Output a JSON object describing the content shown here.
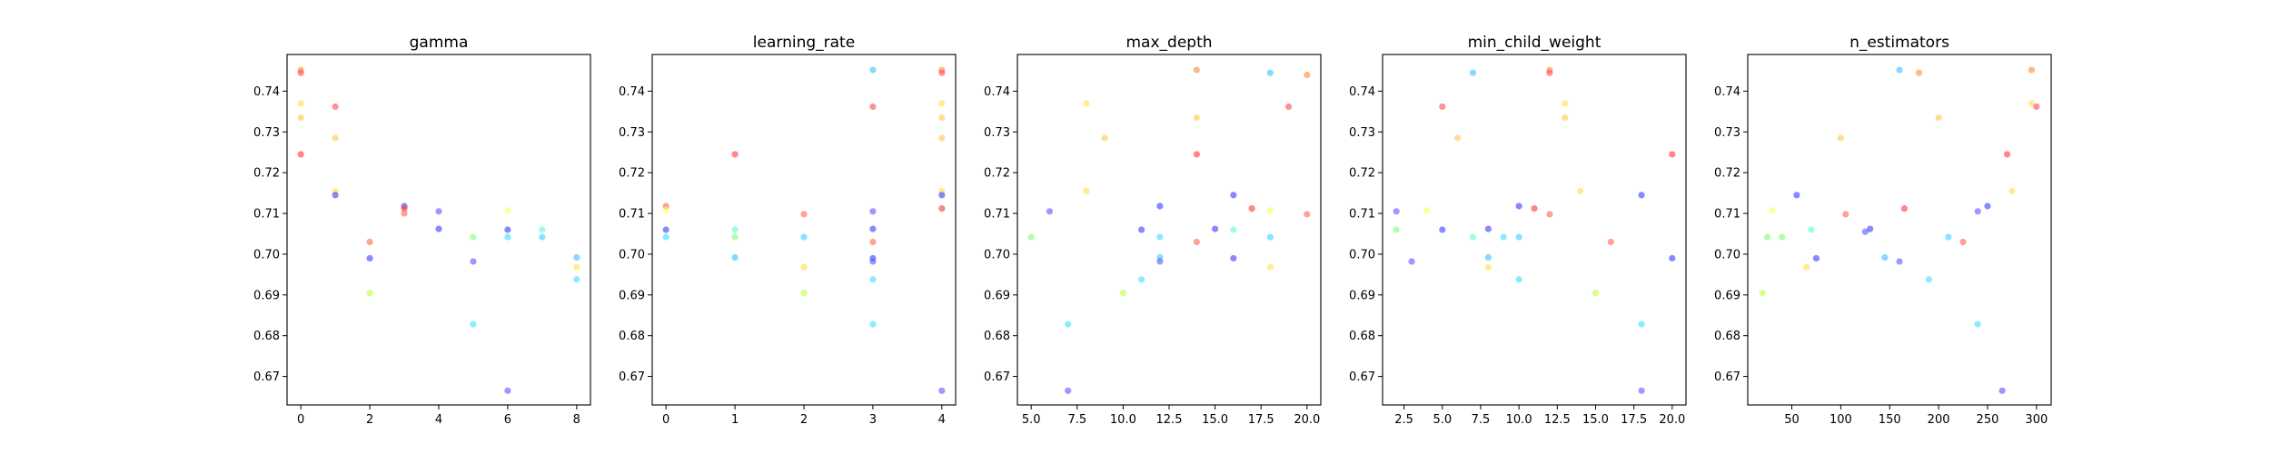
{
  "chart_data": [
    {
      "type": "scatter",
      "title": "gamma",
      "xlim": [
        -0.4,
        8.4
      ],
      "ylim": [
        0.663,
        0.749
      ],
      "xticks": [
        0,
        2,
        4,
        6,
        8
      ],
      "xtick_labels": [
        "0",
        "2",
        "4",
        "6",
        "8"
      ],
      "yticks": [
        0.67,
        0.68,
        0.69,
        0.7,
        0.71,
        0.72,
        0.73,
        0.74
      ],
      "ytick_labels": [
        "0.67",
        "0.68",
        "0.69",
        "0.70",
        "0.71",
        "0.72",
        "0.73",
        "0.74"
      ],
      "points": [
        {
          "x": 0,
          "y": 0.7452,
          "c": "#ff8c3c"
        },
        {
          "x": 0,
          "y": 0.7445,
          "c": "#ff5050"
        },
        {
          "x": 0,
          "y": 0.737,
          "c": "#ffe050"
        },
        {
          "x": 0,
          "y": 0.7335,
          "c": "#ffc850"
        },
        {
          "x": 0,
          "y": 0.7245,
          "c": "#ff3c3c"
        },
        {
          "x": 1,
          "y": 0.7362,
          "c": "#ff5050"
        },
        {
          "x": 1,
          "y": 0.7285,
          "c": "#ffc850"
        },
        {
          "x": 1,
          "y": 0.7155,
          "c": "#ffe050"
        },
        {
          "x": 1,
          "y": 0.7145,
          "c": "#4040ff"
        },
        {
          "x": 2,
          "y": 0.703,
          "c": "#ff6a50"
        },
        {
          "x": 2,
          "y": 0.699,
          "c": "#4040ff"
        },
        {
          "x": 2,
          "y": 0.6905,
          "c": "#c0ff40"
        },
        {
          "x": 3,
          "y": 0.7118,
          "c": "#4040ff"
        },
        {
          "x": 3,
          "y": 0.7112,
          "c": "#ff3c3c"
        },
        {
          "x": 3,
          "y": 0.71,
          "c": "#ff6a50"
        },
        {
          "x": 4,
          "y": 0.7105,
          "c": "#5a5aff"
        },
        {
          "x": 4,
          "y": 0.7062,
          "c": "#4040ff"
        },
        {
          "x": 5,
          "y": 0.7042,
          "c": "#80ff80"
        },
        {
          "x": 5,
          "y": 0.6982,
          "c": "#5a5aff"
        },
        {
          "x": 5,
          "y": 0.6828,
          "c": "#40e0ff"
        },
        {
          "x": 6,
          "y": 0.7108,
          "c": "#ffff60"
        },
        {
          "x": 6,
          "y": 0.706,
          "c": "#4040ff"
        },
        {
          "x": 6,
          "y": 0.7042,
          "c": "#40e0ff"
        },
        {
          "x": 6,
          "y": 0.6665,
          "c": "#5a5aff"
        },
        {
          "x": 7,
          "y": 0.706,
          "c": "#60ffd0"
        },
        {
          "x": 7,
          "y": 0.7042,
          "c": "#40d0ff"
        },
        {
          "x": 8,
          "y": 0.6992,
          "c": "#40c0ff"
        },
        {
          "x": 8,
          "y": 0.6968,
          "c": "#ffe050"
        },
        {
          "x": 8,
          "y": 0.6938,
          "c": "#40e0ff"
        }
      ]
    },
    {
      "type": "scatter",
      "title": "learning_rate",
      "xlim": [
        -0.2,
        4.2
      ],
      "ylim": [
        0.663,
        0.749
      ],
      "xticks": [
        0,
        1,
        2,
        3,
        4
      ],
      "xtick_labels": [
        "0",
        "1",
        "2",
        "3",
        "4"
      ],
      "yticks": [
        0.67,
        0.68,
        0.69,
        0.7,
        0.71,
        0.72,
        0.73,
        0.74
      ],
      "ytick_labels": [
        "0.67",
        "0.68",
        "0.69",
        "0.70",
        "0.71",
        "0.72",
        "0.73",
        "0.74"
      ],
      "points": [
        {
          "x": 0,
          "y": 0.7118,
          "c": "#ff6a50"
        },
        {
          "x": 0,
          "y": 0.7108,
          "c": "#ffff60"
        },
        {
          "x": 0,
          "y": 0.706,
          "c": "#4040ff"
        },
        {
          "x": 0,
          "y": 0.7042,
          "c": "#40e0ff"
        },
        {
          "x": 1,
          "y": 0.7245,
          "c": "#ff3c3c"
        },
        {
          "x": 1,
          "y": 0.706,
          "c": "#60ffd0"
        },
        {
          "x": 1,
          "y": 0.7042,
          "c": "#80ff80"
        },
        {
          "x": 1,
          "y": 0.6992,
          "c": "#40c0ff"
        },
        {
          "x": 2,
          "y": 0.7098,
          "c": "#ff6a50"
        },
        {
          "x": 2,
          "y": 0.7042,
          "c": "#40d0ff"
        },
        {
          "x": 2,
          "y": 0.6968,
          "c": "#ffe050"
        },
        {
          "x": 2,
          "y": 0.6905,
          "c": "#c0ff40"
        },
        {
          "x": 3,
          "y": 0.7452,
          "c": "#40c0ff"
        },
        {
          "x": 3,
          "y": 0.7362,
          "c": "#ff5050"
        },
        {
          "x": 3,
          "y": 0.7105,
          "c": "#5a5aff"
        },
        {
          "x": 3,
          "y": 0.7062,
          "c": "#4040ff"
        },
        {
          "x": 3,
          "y": 0.703,
          "c": "#ff6a50"
        },
        {
          "x": 3,
          "y": 0.699,
          "c": "#4040ff"
        },
        {
          "x": 3,
          "y": 0.6982,
          "c": "#5a5aff"
        },
        {
          "x": 3,
          "y": 0.6938,
          "c": "#40e0ff"
        },
        {
          "x": 3,
          "y": 0.6828,
          "c": "#40e0ff"
        },
        {
          "x": 4,
          "y": 0.7452,
          "c": "#ff8c3c"
        },
        {
          "x": 4,
          "y": 0.7445,
          "c": "#ff5050"
        },
        {
          "x": 4,
          "y": 0.737,
          "c": "#ffe050"
        },
        {
          "x": 4,
          "y": 0.7335,
          "c": "#ffc850"
        },
        {
          "x": 4,
          "y": 0.7285,
          "c": "#ffc850"
        },
        {
          "x": 4,
          "y": 0.7155,
          "c": "#ffe050"
        },
        {
          "x": 4,
          "y": 0.7145,
          "c": "#4040ff"
        },
        {
          "x": 4,
          "y": 0.7112,
          "c": "#ff3c3c"
        },
        {
          "x": 4,
          "y": 0.6665,
          "c": "#5a5aff"
        }
      ]
    },
    {
      "type": "scatter",
      "title": "max_depth",
      "xlim": [
        4.25,
        20.75
      ],
      "ylim": [
        0.663,
        0.749
      ],
      "xticks": [
        5.0,
        7.5,
        10.0,
        12.5,
        15.0,
        17.5,
        20.0
      ],
      "xtick_labels": [
        "5.0",
        "7.5",
        "10.0",
        "12.5",
        "15.0",
        "17.5",
        "20.0"
      ],
      "yticks": [
        0.67,
        0.68,
        0.69,
        0.7,
        0.71,
        0.72,
        0.73,
        0.74
      ],
      "ytick_labels": [
        "0.67",
        "0.68",
        "0.69",
        "0.70",
        "0.71",
        "0.72",
        "0.73",
        "0.74"
      ],
      "points": [
        {
          "x": 5,
          "y": 0.7042,
          "c": "#80ff80"
        },
        {
          "x": 6,
          "y": 0.7105,
          "c": "#5a5aff"
        },
        {
          "x": 7,
          "y": 0.6828,
          "c": "#40e0ff"
        },
        {
          "x": 7,
          "y": 0.6665,
          "c": "#5a5aff"
        },
        {
          "x": 8,
          "y": 0.737,
          "c": "#ffe050"
        },
        {
          "x": 8,
          "y": 0.7155,
          "c": "#ffe050"
        },
        {
          "x": 9,
          "y": 0.7285,
          "c": "#ffc850"
        },
        {
          "x": 10,
          "y": 0.6905,
          "c": "#c0ff40"
        },
        {
          "x": 11,
          "y": 0.706,
          "c": "#4040ff"
        },
        {
          "x": 11,
          "y": 0.6938,
          "c": "#40e0ff"
        },
        {
          "x": 12,
          "y": 0.7118,
          "c": "#4040ff"
        },
        {
          "x": 12,
          "y": 0.7042,
          "c": "#40e0ff"
        },
        {
          "x": 12,
          "y": 0.6992,
          "c": "#40c0ff"
        },
        {
          "x": 12,
          "y": 0.6982,
          "c": "#5a5aff"
        },
        {
          "x": 14,
          "y": 0.7452,
          "c": "#ff8c3c"
        },
        {
          "x": 14,
          "y": 0.7335,
          "c": "#ffc850"
        },
        {
          "x": 14,
          "y": 0.7245,
          "c": "#ff3c3c"
        },
        {
          "x": 14,
          "y": 0.703,
          "c": "#ff6a50"
        },
        {
          "x": 15,
          "y": 0.7062,
          "c": "#4040ff"
        },
        {
          "x": 16,
          "y": 0.7145,
          "c": "#4040ff"
        },
        {
          "x": 16,
          "y": 0.706,
          "c": "#60ffd0"
        },
        {
          "x": 16,
          "y": 0.699,
          "c": "#4040ff"
        },
        {
          "x": 17,
          "y": 0.7112,
          "c": "#ff3c3c"
        },
        {
          "x": 18,
          "y": 0.7445,
          "c": "#40c0ff"
        },
        {
          "x": 18,
          "y": 0.7108,
          "c": "#ffff60"
        },
        {
          "x": 18,
          "y": 0.7042,
          "c": "#40d0ff"
        },
        {
          "x": 18,
          "y": 0.6968,
          "c": "#ffe050"
        },
        {
          "x": 19,
          "y": 0.7362,
          "c": "#ff5050"
        },
        {
          "x": 20,
          "y": 0.744,
          "c": "#ff8c3c"
        },
        {
          "x": 20,
          "y": 0.7098,
          "c": "#ff6a50"
        }
      ]
    },
    {
      "type": "scatter",
      "title": "min_child_weight",
      "xlim": [
        1.1,
        20.9
      ],
      "ylim": [
        0.663,
        0.749
      ],
      "xticks": [
        2.5,
        5.0,
        7.5,
        10.0,
        12.5,
        15.0,
        17.5,
        20.0
      ],
      "xtick_labels": [
        "2.5",
        "5.0",
        "7.5",
        "10.0",
        "12.5",
        "15.0",
        "17.5",
        "20.0"
      ],
      "yticks": [
        0.67,
        0.68,
        0.69,
        0.7,
        0.71,
        0.72,
        0.73,
        0.74
      ],
      "ytick_labels": [
        "0.67",
        "0.68",
        "0.69",
        "0.70",
        "0.71",
        "0.72",
        "0.73",
        "0.74"
      ],
      "points": [
        {
          "x": 2,
          "y": 0.7105,
          "c": "#5a5aff"
        },
        {
          "x": 2,
          "y": 0.706,
          "c": "#80ff80"
        },
        {
          "x": 3,
          "y": 0.6982,
          "c": "#5a5aff"
        },
        {
          "x": 4,
          "y": 0.7108,
          "c": "#ffff60"
        },
        {
          "x": 5,
          "y": 0.7362,
          "c": "#ff5050"
        },
        {
          "x": 5,
          "y": 0.706,
          "c": "#4040ff"
        },
        {
          "x": 6,
          "y": 0.7285,
          "c": "#ffc850"
        },
        {
          "x": 7,
          "y": 0.7445,
          "c": "#40c0ff"
        },
        {
          "x": 7,
          "y": 0.7042,
          "c": "#60ffd0"
        },
        {
          "x": 8,
          "y": 0.7062,
          "c": "#4040ff"
        },
        {
          "x": 8,
          "y": 0.6992,
          "c": "#40c0ff"
        },
        {
          "x": 8,
          "y": 0.6968,
          "c": "#ffe050"
        },
        {
          "x": 9,
          "y": 0.7042,
          "c": "#40e0ff"
        },
        {
          "x": 10,
          "y": 0.7118,
          "c": "#4040ff"
        },
        {
          "x": 10,
          "y": 0.7042,
          "c": "#40d0ff"
        },
        {
          "x": 10,
          "y": 0.6938,
          "c": "#40e0ff"
        },
        {
          "x": 11,
          "y": 0.7112,
          "c": "#ff3c3c"
        },
        {
          "x": 12,
          "y": 0.7452,
          "c": "#ff8c3c"
        },
        {
          "x": 12,
          "y": 0.7445,
          "c": "#ff5050"
        },
        {
          "x": 12,
          "y": 0.7098,
          "c": "#ff6a50"
        },
        {
          "x": 13,
          "y": 0.737,
          "c": "#ffe050"
        },
        {
          "x": 13,
          "y": 0.7335,
          "c": "#ffc850"
        },
        {
          "x": 14,
          "y": 0.7155,
          "c": "#ffe050"
        },
        {
          "x": 15,
          "y": 0.6905,
          "c": "#c0ff40"
        },
        {
          "x": 16,
          "y": 0.703,
          "c": "#ff6a50"
        },
        {
          "x": 18,
          "y": 0.7145,
          "c": "#4040ff"
        },
        {
          "x": 18,
          "y": 0.6828,
          "c": "#40e0ff"
        },
        {
          "x": 18,
          "y": 0.6665,
          "c": "#5a5aff"
        },
        {
          "x": 20,
          "y": 0.7245,
          "c": "#ff3c3c"
        },
        {
          "x": 20,
          "y": 0.699,
          "c": "#4040ff"
        }
      ]
    },
    {
      "type": "scatter",
      "title": "n_estimators",
      "xlim": [
        5,
        315
      ],
      "ylim": [
        0.663,
        0.749
      ],
      "xticks": [
        50,
        100,
        150,
        200,
        250,
        300
      ],
      "xtick_labels": [
        "50",
        "100",
        "150",
        "200",
        "250",
        "300"
      ],
      "yticks": [
        0.67,
        0.68,
        0.69,
        0.7,
        0.71,
        0.72,
        0.73,
        0.74
      ],
      "ytick_labels": [
        "0.67",
        "0.68",
        "0.69",
        "0.70",
        "0.71",
        "0.72",
        "0.73",
        "0.74"
      ],
      "points": [
        {
          "x": 20,
          "y": 0.6905,
          "c": "#c0ff40"
        },
        {
          "x": 25,
          "y": 0.7042,
          "c": "#80ff80"
        },
        {
          "x": 30,
          "y": 0.7108,
          "c": "#ffff60"
        },
        {
          "x": 40,
          "y": 0.7042,
          "c": "#80ff80"
        },
        {
          "x": 55,
          "y": 0.7145,
          "c": "#4040ff"
        },
        {
          "x": 65,
          "y": 0.6968,
          "c": "#ffe050"
        },
        {
          "x": 70,
          "y": 0.706,
          "c": "#60ffd0"
        },
        {
          "x": 75,
          "y": 0.699,
          "c": "#4040ff"
        },
        {
          "x": 100,
          "y": 0.7285,
          "c": "#ffc850"
        },
        {
          "x": 105,
          "y": 0.7098,
          "c": "#ff6a50"
        },
        {
          "x": 125,
          "y": 0.7055,
          "c": "#5a5aff"
        },
        {
          "x": 130,
          "y": 0.7062,
          "c": "#4040ff"
        },
        {
          "x": 145,
          "y": 0.6992,
          "c": "#40c0ff"
        },
        {
          "x": 160,
          "y": 0.7452,
          "c": "#40c0ff"
        },
        {
          "x": 160,
          "y": 0.6982,
          "c": "#5a5aff"
        },
        {
          "x": 165,
          "y": 0.7112,
          "c": "#ff3c3c"
        },
        {
          "x": 180,
          "y": 0.7445,
          "c": "#ff8c3c"
        },
        {
          "x": 190,
          "y": 0.6938,
          "c": "#40e0ff"
        },
        {
          "x": 200,
          "y": 0.7335,
          "c": "#ffc850"
        },
        {
          "x": 210,
          "y": 0.7042,
          "c": "#40d0ff"
        },
        {
          "x": 225,
          "y": 0.703,
          "c": "#ff6a50"
        },
        {
          "x": 240,
          "y": 0.7105,
          "c": "#5a5aff"
        },
        {
          "x": 240,
          "y": 0.6828,
          "c": "#40e0ff"
        },
        {
          "x": 250,
          "y": 0.7118,
          "c": "#4040ff"
        },
        {
          "x": 265,
          "y": 0.6665,
          "c": "#5a5aff"
        },
        {
          "x": 270,
          "y": 0.7245,
          "c": "#ff3c3c"
        },
        {
          "x": 275,
          "y": 0.7155,
          "c": "#ffe050"
        },
        {
          "x": 295,
          "y": 0.7452,
          "c": "#ff8c3c"
        },
        {
          "x": 295,
          "y": 0.737,
          "c": "#ffe050"
        },
        {
          "x": 300,
          "y": 0.7362,
          "c": "#ff5050"
        }
      ]
    }
  ]
}
